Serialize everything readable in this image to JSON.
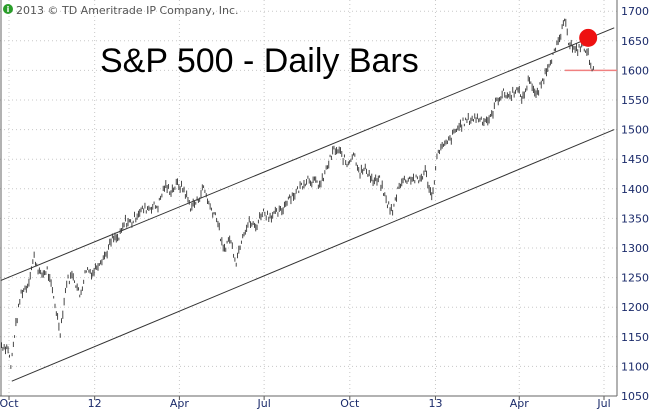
{
  "copyright": "2013 © TD Ameritrade IP Company, Inc.",
  "info_icon": "info-icon",
  "chart_data": {
    "type": "line",
    "title": "S&P 500 - Daily Bars",
    "xlabel": "",
    "ylabel": "",
    "ylim": [
      1050,
      1720
    ],
    "xlim": [
      "2011-09-22",
      "2013-07-12"
    ],
    "grid": true,
    "x_ticks": [
      {
        "date": "2011-10-01",
        "label": "Oct"
      },
      {
        "date": "2012-01-01",
        "label": "12"
      },
      {
        "date": "2012-04-01",
        "label": "Apr"
      },
      {
        "date": "2012-07-01",
        "label": "Jul"
      },
      {
        "date": "2012-10-01",
        "label": "Oct"
      },
      {
        "date": "2013-01-01",
        "label": "13"
      },
      {
        "date": "2013-04-01",
        "label": "Apr"
      },
      {
        "date": "2013-07-01",
        "label": "Jul"
      }
    ],
    "y_ticks": [
      1050,
      1100,
      1150,
      1200,
      1250,
      1300,
      1350,
      1400,
      1450,
      1500,
      1550,
      1600,
      1650,
      1700
    ],
    "series": [
      {
        "color": "#333333",
        "x": [
          "2011-09-23",
          "2011-09-30",
          "2011-10-03",
          "2011-10-07",
          "2011-10-14",
          "2011-10-21",
          "2011-10-28",
          "2011-11-04",
          "2011-11-11",
          "2011-11-18",
          "2011-11-25",
          "2011-12-02",
          "2011-12-09",
          "2011-12-16",
          "2011-12-23",
          "2011-12-30",
          "2012-01-06",
          "2012-01-13",
          "2012-01-20",
          "2012-01-27",
          "2012-02-03",
          "2012-02-10",
          "2012-02-17",
          "2012-02-24",
          "2012-03-02",
          "2012-03-09",
          "2012-03-16",
          "2012-03-23",
          "2012-03-30",
          "2012-04-06",
          "2012-04-13",
          "2012-04-20",
          "2012-04-27",
          "2012-05-04",
          "2012-05-11",
          "2012-05-18",
          "2012-05-25",
          "2012-06-01",
          "2012-06-08",
          "2012-06-15",
          "2012-06-22",
          "2012-06-29",
          "2012-07-06",
          "2012-07-13",
          "2012-07-20",
          "2012-07-27",
          "2012-08-03",
          "2012-08-10",
          "2012-08-17",
          "2012-08-24",
          "2012-08-31",
          "2012-09-07",
          "2012-09-14",
          "2012-09-21",
          "2012-09-28",
          "2012-10-05",
          "2012-10-12",
          "2012-10-19",
          "2012-10-26",
          "2012-11-02",
          "2012-11-09",
          "2012-11-16",
          "2012-11-23",
          "2012-11-30",
          "2012-12-07",
          "2012-12-14",
          "2012-12-21",
          "2012-12-28",
          "2013-01-04",
          "2013-01-11",
          "2013-01-18",
          "2013-01-25",
          "2013-02-01",
          "2013-02-08",
          "2013-02-15",
          "2013-02-22",
          "2013-03-01",
          "2013-03-08",
          "2013-03-15",
          "2013-03-22",
          "2013-03-28",
          "2013-04-05",
          "2013-04-12",
          "2013-04-19",
          "2013-04-26",
          "2013-05-03",
          "2013-05-10",
          "2013-05-17",
          "2013-05-21",
          "2013-05-24",
          "2013-05-31",
          "2013-06-07",
          "2013-06-14",
          "2013-06-21"
        ],
        "values": [
          1136,
          1131,
          1099,
          1155,
          1224,
          1238,
          1285,
          1253,
          1263,
          1216,
          1159,
          1244,
          1255,
          1219,
          1265,
          1258,
          1278,
          1289,
          1315,
          1316,
          1345,
          1343,
          1361,
          1366,
          1370,
          1371,
          1404,
          1397,
          1408,
          1398,
          1370,
          1378,
          1403,
          1369,
          1353,
          1295,
          1317,
          1278,
          1325,
          1343,
          1335,
          1362,
          1355,
          1357,
          1363,
          1386,
          1391,
          1406,
          1418,
          1411,
          1407,
          1438,
          1466,
          1460,
          1441,
          1461,
          1428,
          1433,
          1412,
          1414,
          1380,
          1360,
          1409,
          1416,
          1418,
          1413,
          1430,
          1385,
          1466,
          1472,
          1486,
          1503,
          1513,
          1518,
          1520,
          1516,
          1518,
          1551,
          1561,
          1556,
          1569,
          1553,
          1588,
          1555,
          1582,
          1614,
          1633,
          1667,
          1687,
          1650,
          1631,
          1643,
          1626,
          1593
        ]
      }
    ],
    "annotations": {
      "channel_upper": {
        "from": [
          "2011-09-22",
          1245
        ],
        "to": [
          "2013-07-12",
          1672
        ],
        "color": "#333333"
      },
      "channel_lower": {
        "from": [
          "2011-10-04",
          1075
        ],
        "to": [
          "2013-07-12",
          1500
        ],
        "color": "#333333"
      },
      "support_line": {
        "value": 1600,
        "from": "2013-05-20",
        "color": "#f08080"
      },
      "marker": {
        "date": "2013-06-14",
        "value": 1655,
        "color": "#ee1111"
      }
    }
  }
}
